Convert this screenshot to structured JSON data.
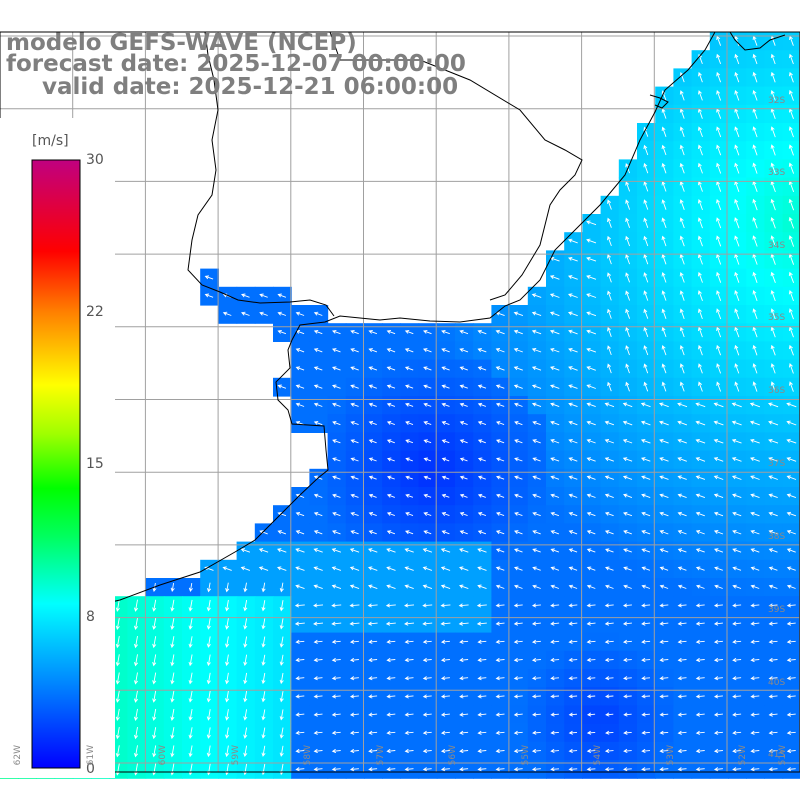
{
  "title": {
    "line1": "modelo GEFS-WAVE (NCEP)",
    "line2": "forecast date: 2025-12-07 00:00:00",
    "line3": "valid date: 2025-12-21 06:00:00"
  },
  "colorbar": {
    "units": "[m/s]",
    "ticks": [
      {
        "label": "30",
        "value": 30
      },
      {
        "label": "22",
        "value": 22
      },
      {
        "label": "15",
        "value": 15
      },
      {
        "label": "8",
        "value": 8
      },
      {
        "label": "0",
        "value": 0
      }
    ],
    "colors": [
      "#0000ff",
      "#0080ff",
      "#00ffff",
      "#00ff80",
      "#00ff00",
      "#80ff00",
      "#ffff00",
      "#ff8000",
      "#ff0000",
      "#c00080"
    ]
  },
  "map": {
    "lat_labels": [
      "32S",
      "33S",
      "34S",
      "35S",
      "36S",
      "37S",
      "38S",
      "39S",
      "40S",
      "41S"
    ],
    "lon_labels": [
      "62W",
      "61W",
      "60W",
      "59W",
      "58W",
      "57W",
      "56W",
      "55W",
      "54W",
      "53W",
      "52W",
      "51W"
    ],
    "land_color": "#ffffff",
    "grid_color": "#a0a0a0",
    "arrow_color": "#ffffff",
    "coast_color": "#000000"
  }
}
